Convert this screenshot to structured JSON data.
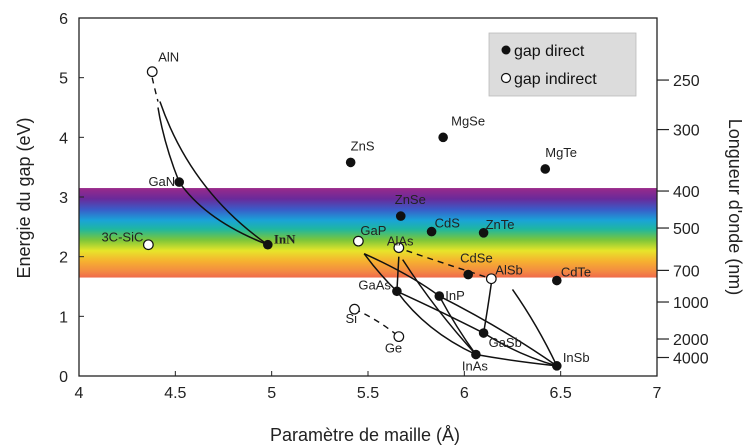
{
  "chart_data": {
    "type": "scatter",
    "xlabel": "Paramètre de maille (Å)",
    "ylabel": "Energie du gap (eV)",
    "y2label": "Longueur d'onde (nm)",
    "xlim": [
      4,
      7
    ],
    "ylim": [
      0,
      6
    ],
    "x_ticks": [
      "4",
      "4.5",
      "5",
      "5.5",
      "6",
      "6.5",
      "7"
    ],
    "y_ticks": [
      "0",
      "1",
      "2",
      "3",
      "4",
      "5",
      "6"
    ],
    "y2_ticks": [
      {
        "label": "250",
        "gap": 4.96
      },
      {
        "label": "300",
        "gap": 4.13
      },
      {
        "label": "400",
        "gap": 3.1
      },
      {
        "label": "500",
        "gap": 2.48
      },
      {
        "label": "700",
        "gap": 1.77
      },
      {
        "label": "1000",
        "gap": 1.24
      },
      {
        "label": "2000",
        "gap": 0.62
      },
      {
        "label": "4000",
        "gap": 0.31
      }
    ],
    "visible_band": {
      "ymin": 1.65,
      "ymax": 3.15
    },
    "legend": {
      "position": "top-right",
      "direct_label": "gap direct",
      "indirect_label": "gap indirect"
    },
    "points": [
      {
        "label": "AlN",
        "x": 4.38,
        "y": 5.1,
        "gap": "indirect",
        "bold": false
      },
      {
        "label": "GaN",
        "x": 4.52,
        "y": 3.25,
        "gap": "direct",
        "bold": false
      },
      {
        "label": "InN",
        "x": 4.98,
        "y": 2.2,
        "gap": "direct",
        "bold": true
      },
      {
        "label": "3C-SiC",
        "x": 4.36,
        "y": 2.2,
        "gap": "indirect",
        "bold": false
      },
      {
        "label": "ZnS",
        "x": 5.41,
        "y": 3.58,
        "gap": "direct",
        "bold": false
      },
      {
        "label": "MgSe",
        "x": 5.89,
        "y": 4.0,
        "gap": "direct",
        "bold": false
      },
      {
        "label": "MgTe",
        "x": 6.42,
        "y": 3.47,
        "gap": "direct",
        "bold": false
      },
      {
        "label": "ZnSe",
        "x": 5.67,
        "y": 2.68,
        "gap": "direct",
        "bold": false
      },
      {
        "label": "CdS",
        "x": 5.83,
        "y": 2.42,
        "gap": "direct",
        "bold": false
      },
      {
        "label": "ZnTe",
        "x": 6.1,
        "y": 2.4,
        "gap": "direct",
        "bold": false
      },
      {
        "label": "GaP",
        "x": 5.45,
        "y": 2.26,
        "gap": "indirect",
        "bold": false
      },
      {
        "label": "AlAs",
        "x": 5.66,
        "y": 2.15,
        "gap": "indirect",
        "bold": false
      },
      {
        "label": "CdSe",
        "x": 6.02,
        "y": 1.7,
        "gap": "direct",
        "bold": false
      },
      {
        "label": "AlSb",
        "x": 6.14,
        "y": 1.63,
        "gap": "indirect",
        "bold": false
      },
      {
        "label": "CdTe",
        "x": 6.48,
        "y": 1.6,
        "gap": "direct",
        "bold": false
      },
      {
        "label": "GaAs",
        "x": 5.65,
        "y": 1.42,
        "gap": "direct",
        "bold": false
      },
      {
        "label": "InP",
        "x": 5.87,
        "y": 1.34,
        "gap": "direct",
        "bold": false
      },
      {
        "label": "Si",
        "x": 5.43,
        "y": 1.12,
        "gap": "indirect",
        "bold": false
      },
      {
        "label": "Ge",
        "x": 5.66,
        "y": 0.66,
        "gap": "indirect",
        "bold": false
      },
      {
        "label": "GaSb",
        "x": 6.1,
        "y": 0.72,
        "gap": "direct",
        "bold": false
      },
      {
        "label": "InAs",
        "x": 6.06,
        "y": 0.36,
        "gap": "direct",
        "bold": false
      },
      {
        "label": "InSb",
        "x": 6.48,
        "y": 0.17,
        "gap": "direct",
        "bold": false
      }
    ],
    "curves": [
      {
        "from": "GaN",
        "to": "InN",
        "points": [
          [
            4.52,
            3.25
          ],
          [
            4.66,
            2.6
          ],
          [
            4.98,
            2.2
          ]
        ]
      },
      {
        "from": "AlN",
        "to": "InN",
        "points": [
          [
            4.42,
            4.6
          ],
          [
            4.58,
            3.1
          ],
          [
            4.98,
            2.2
          ]
        ]
      },
      {
        "from": "AlN",
        "to": "GaN",
        "points": [
          [
            4.41,
            4.5
          ],
          [
            4.44,
            3.9
          ],
          [
            4.52,
            3.25
          ]
        ]
      },
      {
        "from": "GaP",
        "to": "InP",
        "points": [
          [
            5.48,
            2.05
          ],
          [
            5.72,
            1.7
          ],
          [
            5.87,
            1.34
          ]
        ]
      },
      {
        "from": "GaAs",
        "to": "InAs",
        "points": [
          [
            5.65,
            1.42
          ],
          [
            5.8,
            0.75
          ],
          [
            6.06,
            0.36
          ]
        ]
      },
      {
        "from": "GaAs",
        "to": "GaSb",
        "points": [
          [
            5.65,
            1.42
          ],
          [
            5.9,
            1.05
          ],
          [
            6.1,
            0.72
          ]
        ]
      },
      {
        "from": "InP",
        "to": "InAs",
        "points": [
          [
            5.87,
            1.34
          ],
          [
            5.96,
            0.8
          ],
          [
            6.06,
            0.36
          ]
        ]
      },
      {
        "from": "GaSb",
        "to": "InSb",
        "points": [
          [
            6.1,
            0.72
          ],
          [
            6.28,
            0.35
          ],
          [
            6.48,
            0.17
          ]
        ]
      },
      {
        "from": "InAs",
        "to": "InSb",
        "points": [
          [
            6.06,
            0.36
          ],
          [
            6.25,
            0.25
          ],
          [
            6.48,
            0.17
          ]
        ]
      },
      {
        "from": "AlAs",
        "to": "GaAs",
        "points": [
          [
            5.66,
            2.0
          ],
          [
            5.655,
            1.7
          ],
          [
            5.65,
            1.42
          ]
        ]
      },
      {
        "from": "GaP",
        "to": "GaAs",
        "points": [
          [
            5.48,
            2.05
          ],
          [
            5.56,
            1.7
          ],
          [
            5.65,
            1.42
          ]
        ]
      },
      {
        "from": "AlAs",
        "to": "InAs",
        "points": [
          [
            5.68,
            1.95
          ],
          [
            5.85,
            1.1
          ],
          [
            6.06,
            0.36
          ]
        ]
      },
      {
        "from": "InP",
        "to": "InSb",
        "points": [
          [
            5.87,
            1.34
          ],
          [
            6.2,
            0.8
          ],
          [
            6.48,
            0.17
          ]
        ]
      },
      {
        "from": "AlSb",
        "to": "GaSb",
        "points": [
          [
            6.14,
            1.55
          ],
          [
            6.12,
            1.1
          ],
          [
            6.1,
            0.72
          ]
        ]
      },
      {
        "from": "AlSb",
        "to": "InSb",
        "points": [
          [
            6.25,
            1.45
          ],
          [
            6.38,
            0.85
          ],
          [
            6.48,
            0.17
          ]
        ]
      }
    ],
    "dashed_curves": [
      {
        "from": "AlAs",
        "to": "AlSb",
        "points": [
          [
            5.7,
            2.1
          ],
          [
            5.9,
            1.88
          ],
          [
            6.14,
            1.63
          ]
        ]
      },
      {
        "from": "Si",
        "to": "Ge",
        "points": [
          [
            5.43,
            1.12
          ],
          [
            5.55,
            0.95
          ],
          [
            5.66,
            0.66
          ]
        ]
      },
      {
        "from": "AlN",
        "to": "GaN",
        "points": [
          [
            4.38,
            5.0
          ],
          [
            4.39,
            4.85
          ],
          [
            4.41,
            4.6
          ]
        ]
      }
    ]
  }
}
